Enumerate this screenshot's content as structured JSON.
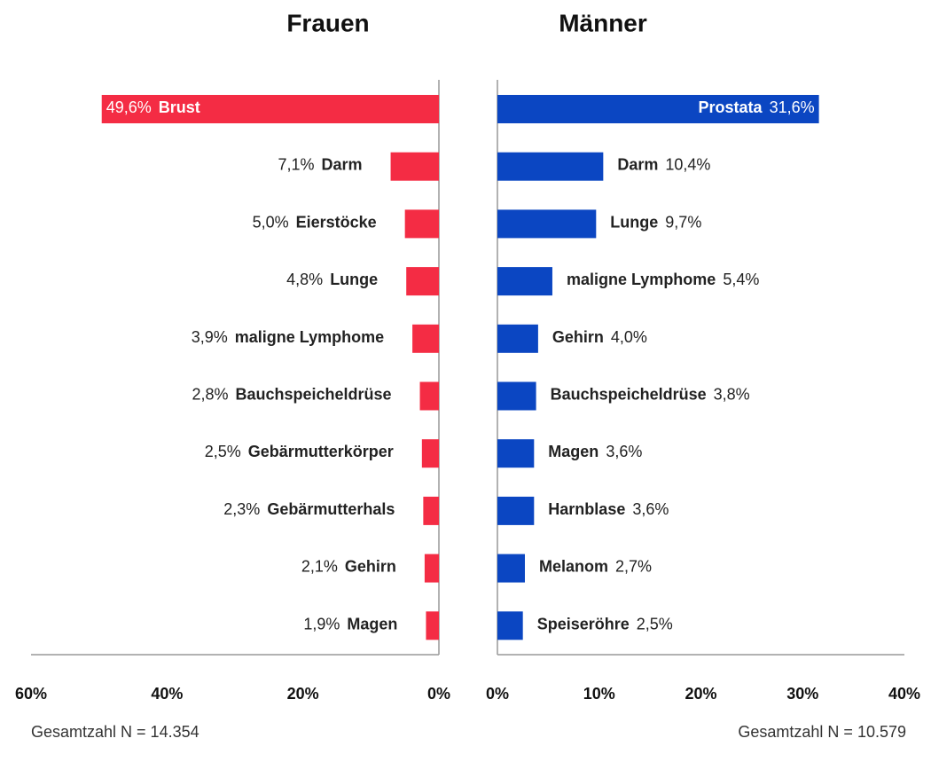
{
  "chart_data": [
    {
      "type": "bar",
      "orientation": "horizontal",
      "x_reversed": true,
      "title": "Frauen",
      "categories": [
        "Brust",
        "Darm",
        "Eierstöcke",
        "Lunge",
        "maligne Lymphome",
        "Bauchspeicheldrüse",
        "Gebärmutterkörper",
        "Gebärmutterhals",
        "Gehirn",
        "Magen"
      ],
      "values": [
        49.6,
        7.1,
        5.0,
        4.8,
        3.9,
        2.8,
        2.5,
        2.3,
        2.1,
        1.9
      ],
      "value_labels": [
        "49,6%",
        "7,1%",
        "5,0%",
        "4,8%",
        "3,9%",
        "2,8%",
        "2,5%",
        "2,3%",
        "2,1%",
        "1,9%"
      ],
      "color": "#f42c44",
      "xlim": [
        0,
        60
      ],
      "xticks": [
        {
          "value": 60,
          "label": "60%"
        },
        {
          "value": 40,
          "label": "40%"
        },
        {
          "value": 20,
          "label": "20%"
        },
        {
          "value": 0,
          "label": "0%"
        }
      ],
      "note": "Gesamtzahl N = 14.354"
    },
    {
      "type": "bar",
      "orientation": "horizontal",
      "x_reversed": false,
      "title": "Männer",
      "categories": [
        "Prostata",
        "Darm",
        "Lunge",
        "maligne Lymphome",
        "Gehirn",
        "Bauchspeicheldrüse",
        "Magen",
        "Harnblase",
        "Melanom",
        "Speiseröhre"
      ],
      "values": [
        31.6,
        10.4,
        9.7,
        5.4,
        4.0,
        3.8,
        3.6,
        3.6,
        2.7,
        2.5
      ],
      "value_labels": [
        "31,6%",
        "10,4%",
        "9,7%",
        "5,4%",
        "4,0%",
        "3,8%",
        "3,6%",
        "3,6%",
        "2,7%",
        "2,5%"
      ],
      "color": "#0b46c2",
      "xlim": [
        0,
        40
      ],
      "xticks": [
        {
          "value": 0,
          "label": "0%"
        },
        {
          "value": 10,
          "label": "10%"
        },
        {
          "value": 20,
          "label": "20%"
        },
        {
          "value": 30,
          "label": "30%"
        },
        {
          "value": 40,
          "label": "40%"
        }
      ],
      "note": "Gesamtzahl  N = 10.579"
    }
  ]
}
